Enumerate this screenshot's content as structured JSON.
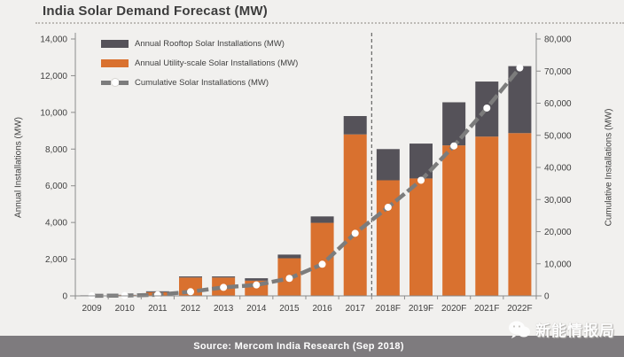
{
  "title": "India Solar Demand Forecast (MW)",
  "source_bar": {
    "text": "Source: Mercom India Research (Sep 2018)"
  },
  "watermark": {
    "text": "新能情报局",
    "icon": "wechat-chat-bubbles"
  },
  "colors": {
    "background": "#F1F0EE",
    "rooftop_bar": "#555259",
    "utility_bar": "#D9712F",
    "cumulative_line": "#7C7C7C",
    "line_marker": "#FFFFFF",
    "axis": "#8C8C8C",
    "tick_text": "#3F3F3F",
    "divider": "#4A4A4A",
    "source_bar_bg": "#7E7B7E"
  },
  "chart_data": {
    "type": "bar",
    "subtype": "stacked-bars-with-cumulative-line",
    "title": "India Solar Demand Forecast (MW)",
    "categories": [
      "2009",
      "2010",
      "2011",
      "2012",
      "2013",
      "2014",
      "2015",
      "2016",
      "2017",
      "2018F",
      "2019F",
      "2020F",
      "2021F",
      "2022F"
    ],
    "series": [
      {
        "name": "Annual Rooftop Solar Installations (MW)",
        "type": "bar",
        "stack": "annual",
        "stack_order": "top",
        "axis": "left",
        "color": "#555259",
        "values": [
          10,
          15,
          50,
          60,
          60,
          130,
          200,
          350,
          1000,
          1700,
          1900,
          2350,
          3000,
          3650
        ]
      },
      {
        "name": "Annual Utility-scale Solar Installations (MW)",
        "type": "bar",
        "stack": "annual",
        "stack_order": "bottom",
        "axis": "left",
        "color": "#D9712F",
        "values": [
          20,
          40,
          200,
          1000,
          1000,
          830,
          2050,
          3980,
          8800,
          6300,
          6400,
          8200,
          8680,
          8870
        ]
      },
      {
        "name": "Cumulative Solar Installations (MW)",
        "type": "line",
        "axis": "right",
        "color": "#7C7C7C",
        "marker": "white-dot",
        "dash": "long-dash",
        "values": [
          30,
          90,
          340,
          1300,
          2650,
          3400,
          5450,
          9850,
          19500,
          27600,
          36000,
          46700,
          58500,
          71000
        ]
      }
    ],
    "left_axis": {
      "label": "Annual Installations (MW)",
      "min": 0,
      "max": 14000,
      "step": 2000
    },
    "right_axis": {
      "label": "Cumulative Installations (MW)",
      "min": 0,
      "max": 80000,
      "step": 10000
    },
    "divider_after_category": "2017",
    "legend_position": "top-left-inside",
    "grid": false
  }
}
